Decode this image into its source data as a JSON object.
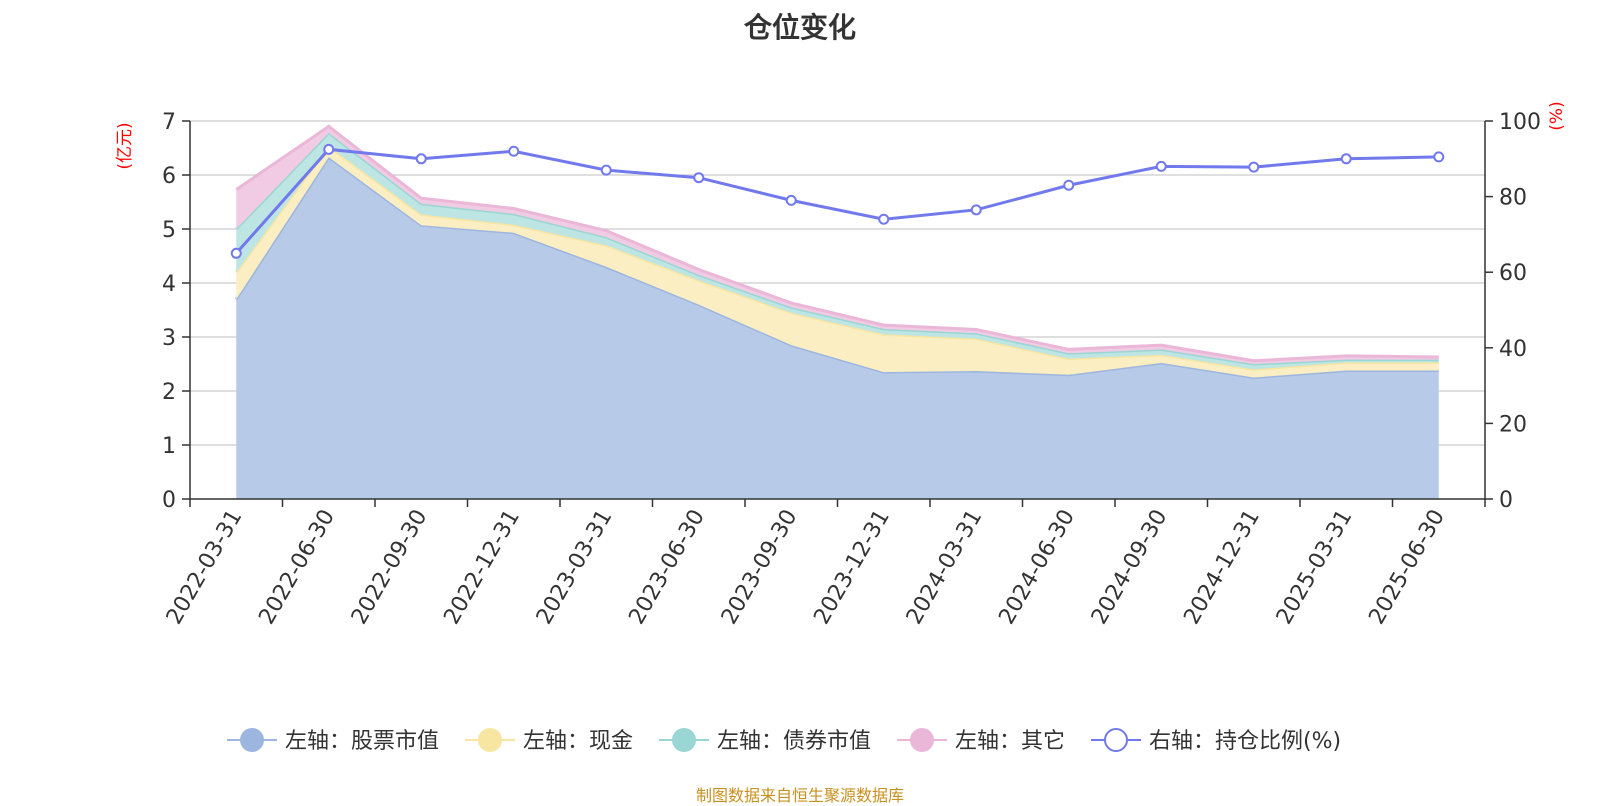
{
  "title": "仓位变化",
  "source_note": "制图数据来自恒生聚源数据库",
  "chart_data": {
    "type": "area",
    "title": "仓位变化",
    "left_axis_unit": "(亿元)",
    "right_axis_unit": "(%)",
    "ylim_left": [
      0,
      7
    ],
    "ylim_right": [
      0,
      100
    ],
    "yticks_left": [
      0,
      1,
      2,
      3,
      4,
      5,
      6,
      7
    ],
    "yticks_right": [
      0,
      20,
      40,
      60,
      80,
      100
    ],
    "grid": true,
    "legend_position": "bottom",
    "categories": [
      "2022-03-31",
      "2022-06-30",
      "2022-09-30",
      "2022-12-31",
      "2023-03-31",
      "2023-06-30",
      "2023-09-30",
      "2023-12-31",
      "2024-03-31",
      "2024-06-30",
      "2024-09-30",
      "2024-12-31",
      "2025-03-31",
      "2025-06-30"
    ],
    "series": [
      {
        "name": "左轴：股票市值",
        "axis": "left",
        "kind": "stacked-area",
        "color": "#9db6df",
        "fill": "#b7cbe9",
        "values": [
          3.7,
          6.33,
          5.07,
          4.93,
          4.3,
          3.6,
          2.85,
          2.35,
          2.37,
          2.3,
          2.52,
          2.25,
          2.38,
          2.38
        ]
      },
      {
        "name": "左轴：现金",
        "axis": "left",
        "kind": "stacked-area",
        "color": "#f7e5a2",
        "fill": "#fbeec2",
        "values": [
          0.5,
          0.2,
          0.2,
          0.15,
          0.4,
          0.45,
          0.6,
          0.7,
          0.6,
          0.3,
          0.15,
          0.15,
          0.15,
          0.15
        ]
      },
      {
        "name": "左轴：债券市值",
        "axis": "left",
        "kind": "stacked-area",
        "color": "#9ad6d4",
        "fill": "#bde5e3",
        "values": [
          0.8,
          0.25,
          0.2,
          0.2,
          0.15,
          0.1,
          0.1,
          0.1,
          0.1,
          0.1,
          0.1,
          0.1,
          0.05,
          0.05
        ]
      },
      {
        "name": "左轴：其它",
        "axis": "left",
        "kind": "stacked-area",
        "color": "#eab7d8",
        "fill": "#f1cbe3",
        "values": [
          0.73,
          0.12,
          0.1,
          0.1,
          0.12,
          0.1,
          0.08,
          0.07,
          0.07,
          0.07,
          0.08,
          0.06,
          0.07,
          0.05
        ]
      },
      {
        "name": "右轴：持仓比例(%)",
        "axis": "right",
        "kind": "line",
        "color": "#7179ec",
        "values": [
          65,
          92.5,
          90,
          92,
          87,
          85,
          79,
          74,
          76.5,
          83,
          88,
          87.8,
          90,
          90.5
        ]
      }
    ]
  },
  "colors": {
    "axis": "#333333",
    "grid": "#cccccc",
    "unit_label": "#ff0000",
    "title": "#333333",
    "source": "#c8901f"
  }
}
